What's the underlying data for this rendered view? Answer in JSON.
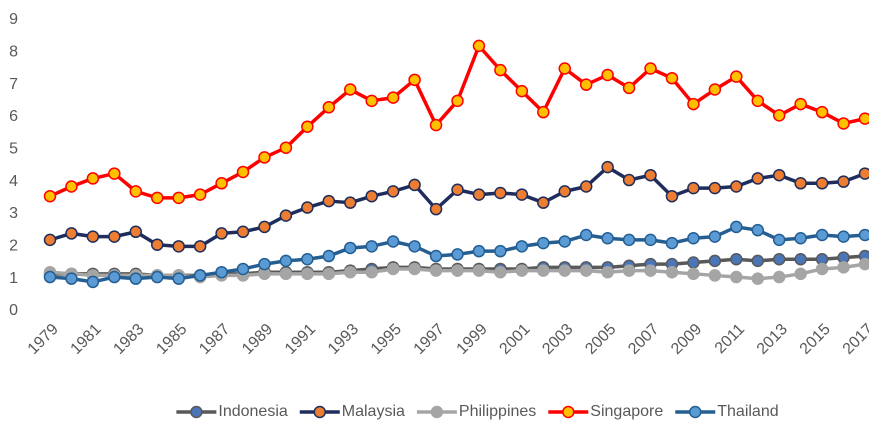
{
  "chart_data": {
    "type": "line",
    "x": [
      1979,
      1980,
      1981,
      1982,
      1983,
      1984,
      1985,
      1986,
      1987,
      1988,
      1989,
      1990,
      1991,
      1992,
      1993,
      1994,
      1995,
      1996,
      1997,
      1998,
      1999,
      2000,
      2001,
      2002,
      2003,
      2004,
      2005,
      2006,
      2007,
      2008,
      2009,
      2010,
      2011,
      2012,
      2013,
      2014,
      2015,
      2016,
      2017
    ],
    "xlim": [
      1979,
      2017
    ],
    "xticks": [
      1979,
      1981,
      1983,
      1985,
      1987,
      1989,
      1991,
      1993,
      1995,
      1997,
      1999,
      2001,
      2003,
      2005,
      2007,
      2009,
      2011,
      2013,
      2015,
      2017
    ],
    "ylim": [
      0,
      9
    ],
    "yticks": [
      0,
      1,
      2,
      3,
      4,
      5,
      6,
      7,
      8,
      9
    ],
    "grid": false,
    "legend": "bottom",
    "series": [
      {
        "name": "Indonesia",
        "color": "#595959",
        "marker_color": "#4a76b8",
        "values": [
          1.15,
          1.15,
          1.15,
          1.15,
          1.15,
          1.1,
          1.1,
          1.1,
          1.15,
          1.15,
          1.2,
          1.2,
          1.2,
          1.2,
          1.25,
          1.3,
          1.35,
          1.35,
          1.3,
          1.3,
          1.3,
          1.3,
          1.3,
          1.35,
          1.35,
          1.35,
          1.35,
          1.4,
          1.45,
          1.45,
          1.5,
          1.55,
          1.6,
          1.55,
          1.6,
          1.6,
          1.6,
          1.65,
          1.7
        ]
      },
      {
        "name": "Malaysia",
        "color": "#1f2d5c",
        "marker_color": "#ed7d31",
        "values": [
          2.2,
          2.4,
          2.3,
          2.3,
          2.45,
          2.05,
          2.0,
          2.0,
          2.4,
          2.45,
          2.6,
          2.95,
          3.2,
          3.4,
          3.35,
          3.55,
          3.7,
          3.9,
          3.15,
          3.75,
          3.6,
          3.65,
          3.6,
          3.35,
          3.7,
          3.85,
          4.45,
          4.05,
          4.2,
          3.55,
          3.8,
          3.8,
          3.85,
          4.1,
          4.2,
          3.95,
          3.95,
          4.0,
          4.25
        ]
      },
      {
        "name": "Philippines",
        "color": "#a5a5a5",
        "marker_color": "#a5a5a5",
        "values": [
          1.2,
          1.15,
          1.1,
          1.1,
          1.1,
          1.1,
          1.1,
          1.05,
          1.1,
          1.1,
          1.15,
          1.15,
          1.15,
          1.15,
          1.2,
          1.2,
          1.3,
          1.3,
          1.25,
          1.25,
          1.25,
          1.2,
          1.25,
          1.25,
          1.25,
          1.25,
          1.2,
          1.25,
          1.25,
          1.2,
          1.15,
          1.1,
          1.05,
          1.0,
          1.05,
          1.15,
          1.3,
          1.35,
          1.45
        ]
      },
      {
        "name": "Singapore",
        "color": "#ff0000",
        "marker_color": "#ffc000",
        "values": [
          3.55,
          3.85,
          4.1,
          4.25,
          3.7,
          3.5,
          3.5,
          3.6,
          3.95,
          4.3,
          4.75,
          5.05,
          5.7,
          6.3,
          6.85,
          6.5,
          6.6,
          7.15,
          5.75,
          6.5,
          8.2,
          7.45,
          6.8,
          6.15,
          7.5,
          7.0,
          7.3,
          6.9,
          7.5,
          7.2,
          6.4,
          6.85,
          7.25,
          6.5,
          6.05,
          6.4,
          6.15,
          5.8,
          5.95
        ]
      },
      {
        "name": "Thailand",
        "color": "#255e91",
        "marker_color": "#5b9bd5",
        "values": [
          1.05,
          1.0,
          0.9,
          1.05,
          1.0,
          1.05,
          1.0,
          1.1,
          1.2,
          1.3,
          1.45,
          1.55,
          1.6,
          1.7,
          1.95,
          2.0,
          2.15,
          2.0,
          1.7,
          1.75,
          1.85,
          1.85,
          2.0,
          2.1,
          2.15,
          2.35,
          2.25,
          2.2,
          2.2,
          2.1,
          2.25,
          2.3,
          2.6,
          2.5,
          2.2,
          2.25,
          2.35,
          2.3,
          2.35
        ]
      }
    ]
  }
}
